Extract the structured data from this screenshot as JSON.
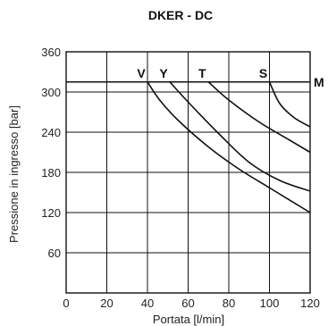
{
  "chart_data": {
    "type": "line",
    "title": "DKER - DC",
    "xlabel": "Portata [l/min]",
    "ylabel": "Pressione in ingresso [bar]",
    "xlim": [
      0,
      120
    ],
    "ylim": [
      0,
      360
    ],
    "x_ticks": [
      "0",
      "20",
      "40",
      "60",
      "80",
      "100",
      "120"
    ],
    "y_ticks": [
      "60",
      "120",
      "180",
      "240",
      "300",
      "360"
    ],
    "grid": true,
    "max_pressure_line": {
      "label": "M",
      "y": 315
    },
    "series": [
      {
        "name": "V",
        "x": [
          40,
          46,
          55,
          70,
          85,
          100,
          120
        ],
        "y": [
          315,
          288,
          258,
          218,
          185,
          157,
          120
        ]
      },
      {
        "name": "Y",
        "x": [
          51,
          60,
          75,
          90,
          105,
          120
        ],
        "y": [
          315,
          285,
          238,
          195,
          168,
          152
        ]
      },
      {
        "name": "T",
        "x": [
          70,
          80,
          95,
          110,
          120
        ],
        "y": [
          315,
          288,
          255,
          228,
          210
        ]
      },
      {
        "name": "S",
        "x": [
          100,
          105,
          112,
          120
        ],
        "y": [
          315,
          283,
          262,
          248
        ]
      }
    ]
  }
}
